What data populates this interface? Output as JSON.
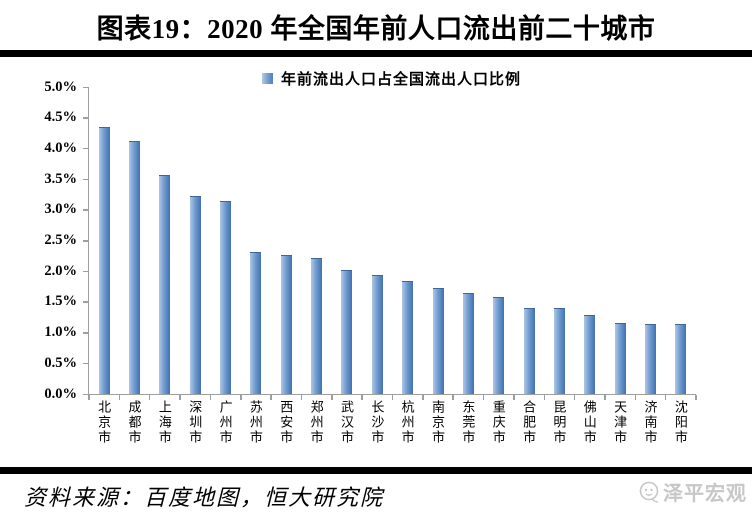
{
  "title": "图表19：2020 年全国年前人口流出前二十城市",
  "legend": {
    "label": "年前流出人口占全国流出人口比例"
  },
  "footer": {
    "source": "资料来源：百度地图，恒大研究院",
    "logo_text": "泽平宏观"
  },
  "colors": {
    "bar_main": "#4f81bd",
    "bar_highlight": "#aec6e6",
    "axis": "#9e9e9e",
    "divider": "#000000",
    "logo_gray": "#c7c7c7"
  },
  "chart_data": {
    "type": "bar",
    "title": "图表19：2020 年全国年前人口流出前二十城市",
    "legend_entries": [
      "年前流出人口占全国流出人口比例"
    ],
    "legend_position": "top-center",
    "grid": false,
    "xlabel": "",
    "ylabel": "",
    "ylim": [
      0,
      5
    ],
    "yticks": [
      "5.0%",
      "4.5%",
      "4.0%",
      "3.5%",
      "3.0%",
      "2.5%",
      "2.0%",
      "1.5%",
      "1.0%",
      "0.5%",
      "0.0%"
    ],
    "categories": [
      "北京市",
      "成都市",
      "上海市",
      "深圳市",
      "广州市",
      "苏州市",
      "西安市",
      "郑州市",
      "武汉市",
      "长沙市",
      "杭州市",
      "南京市",
      "东莞市",
      "重庆市",
      "合肥市",
      "昆明市",
      "佛山市",
      "天津市",
      "济南市",
      "沈阳市"
    ],
    "values": [
      4.33,
      4.1,
      3.55,
      3.21,
      3.13,
      2.3,
      2.24,
      2.2,
      2.0,
      1.93,
      1.82,
      1.71,
      1.63,
      1.57,
      1.39,
      1.38,
      1.27,
      1.14,
      1.13,
      1.13
    ]
  }
}
